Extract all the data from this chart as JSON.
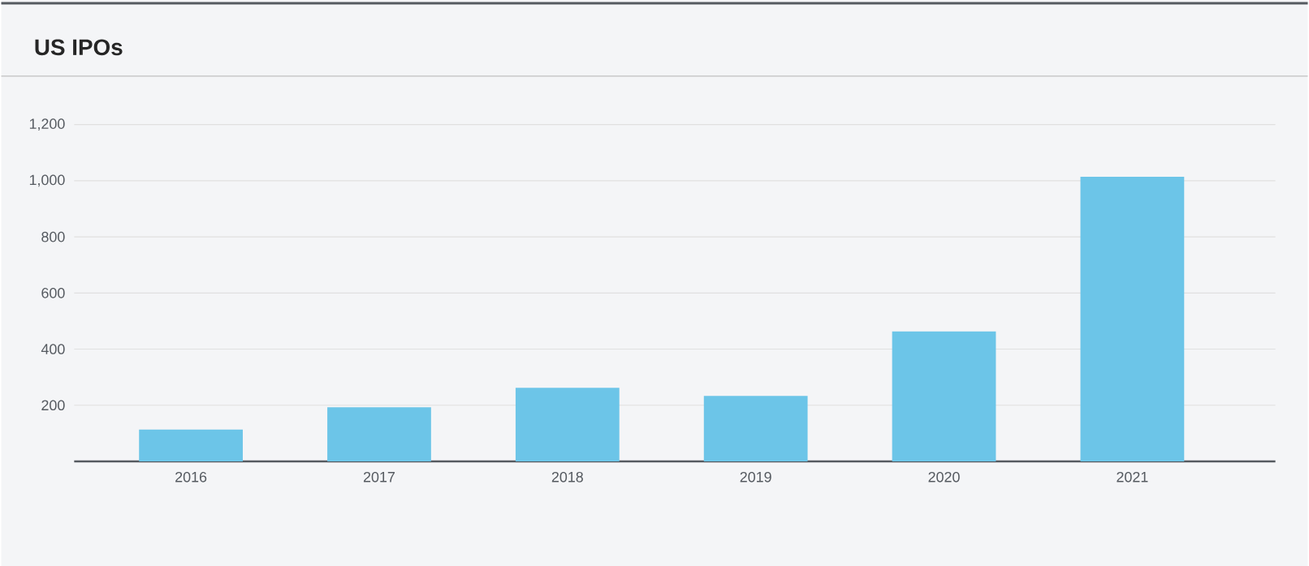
{
  "chart_data": {
    "type": "bar",
    "title": "US IPOs",
    "categories": [
      "2016",
      "2017",
      "2018",
      "2019",
      "2020",
      "2021"
    ],
    "values": [
      113,
      193,
      262,
      233,
      463,
      1014
    ],
    "color": "#6cc5e8",
    "ylim": [
      0,
      1200
    ],
    "yticks": [
      {
        "value": 0,
        "label": null
      },
      {
        "value": 200,
        "label": "200"
      },
      {
        "value": 400,
        "label": "400"
      },
      {
        "value": 600,
        "label": "600"
      },
      {
        "value": 800,
        "label": "800"
      },
      {
        "value": 1000,
        "label": "1,000"
      },
      {
        "value": 1200,
        "label": "1,200"
      }
    ],
    "grid": "y"
  }
}
